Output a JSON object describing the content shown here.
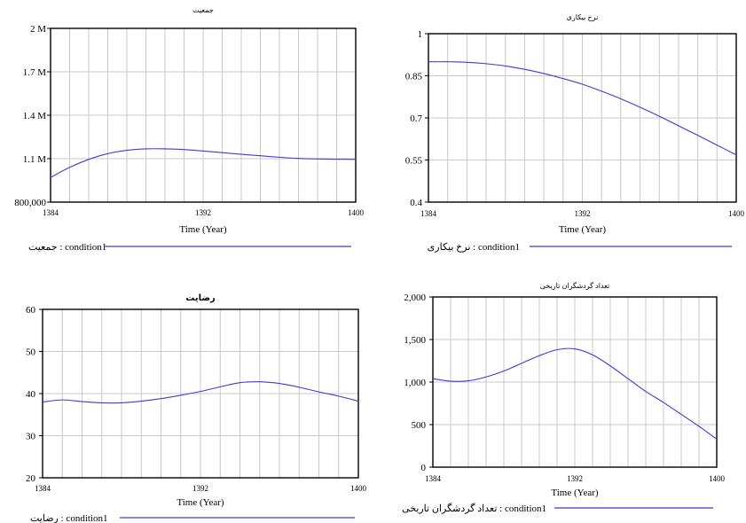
{
  "chart_data": [
    {
      "type": "line",
      "title": "جمعیت",
      "xlabel": "Time (Year)",
      "ylabel": "",
      "xlim": [
        1384,
        1400
      ],
      "ylim": [
        800000,
        2000000
      ],
      "y_ticks": [
        "2 M",
        "1.7 M",
        "1.4 M",
        "1.1 M",
        "800,000"
      ],
      "x_ticks": [
        "1384",
        "1392",
        "1400"
      ],
      "grid": true,
      "series": [
        {
          "name": "جمعیت : condition1",
          "color": "#3b3bdb",
          "x": [
            1384,
            1385,
            1386,
            1387,
            1388,
            1389,
            1390,
            1391,
            1392,
            1393,
            1394,
            1395,
            1396,
            1397,
            1398,
            1399,
            1400
          ],
          "values": [
            970000,
            1040000,
            1095000,
            1135000,
            1158000,
            1168000,
            1168000,
            1163000,
            1153000,
            1142000,
            1130000,
            1120000,
            1110000,
            1102000,
            1098000,
            1096000,
            1095000
          ]
        }
      ],
      "legend": "bottom-left"
    },
    {
      "type": "line",
      "title": "نرخ بیکاری",
      "xlabel": "Time (Year)",
      "ylabel": "",
      "xlim": [
        1384,
        1400
      ],
      "ylim": [
        0.4,
        1
      ],
      "y_ticks": [
        "1",
        "0.85",
        "0.7",
        "0.55",
        "0.4"
      ],
      "x_ticks": [
        "1384",
        "1392",
        "1400"
      ],
      "grid": true,
      "series": [
        {
          "name": "نرخ بیکاری : condition1",
          "color": "#3b3bdb",
          "x": [
            1384,
            1385,
            1386,
            1387,
            1388,
            1389,
            1390,
            1391,
            1392,
            1393,
            1394,
            1395,
            1396,
            1397,
            1398,
            1399,
            1400
          ],
          "values": [
            0.9,
            0.9,
            0.898,
            0.893,
            0.885,
            0.873,
            0.858,
            0.84,
            0.82,
            0.795,
            0.768,
            0.738,
            0.706,
            0.672,
            0.638,
            0.603,
            0.568
          ]
        }
      ],
      "legend": "bottom-right"
    },
    {
      "type": "line",
      "title": "رضایت",
      "xlabel": "Time (Year)",
      "ylabel": "",
      "xlim": [
        1384,
        1400
      ],
      "ylim": [
        20,
        60
      ],
      "y_ticks": [
        "60",
        "50",
        "40",
        "30",
        "20"
      ],
      "x_ticks": [
        "1384",
        "1392",
        "1400"
      ],
      "grid": true,
      "series": [
        {
          "name": "رضایت : condition1",
          "color": "#3b3bdb",
          "x": [
            1384,
            1385,
            1386,
            1387,
            1388,
            1389,
            1390,
            1391,
            1392,
            1393,
            1394,
            1395,
            1396,
            1397,
            1398,
            1399,
            1400
          ],
          "values": [
            38,
            38.5,
            38.1,
            37.8,
            37.8,
            38.2,
            38.8,
            39.6,
            40.5,
            41.6,
            42.6,
            42.8,
            42.4,
            41.5,
            40.4,
            39.4,
            38.2
          ]
        }
      ],
      "legend": "bottom-left"
    },
    {
      "type": "line",
      "title": "تعداد گردشگران تاریخی",
      "xlabel": "Time (Year)",
      "ylabel": "",
      "xlim": [
        1384,
        1400
      ],
      "ylim": [
        0,
        2000
      ],
      "y_ticks": [
        "2,000",
        "1,500",
        "1,000",
        "500",
        "0"
      ],
      "x_ticks": [
        "1384",
        "1392",
        "1400"
      ],
      "grid": true,
      "series": [
        {
          "name": "تعداد گردشگران تاریخی : condition1",
          "color": "#3b3bdb",
          "x": [
            1384,
            1385,
            1386,
            1387,
            1388,
            1389,
            1390,
            1391,
            1392,
            1393,
            1394,
            1395,
            1396,
            1397,
            1398,
            1399,
            1400
          ],
          "values": [
            1040,
            1010,
            1015,
            1060,
            1130,
            1220,
            1310,
            1380,
            1390,
            1320,
            1190,
            1040,
            890,
            760,
            620,
            480,
            330
          ]
        }
      ],
      "legend": "bottom-right"
    }
  ]
}
